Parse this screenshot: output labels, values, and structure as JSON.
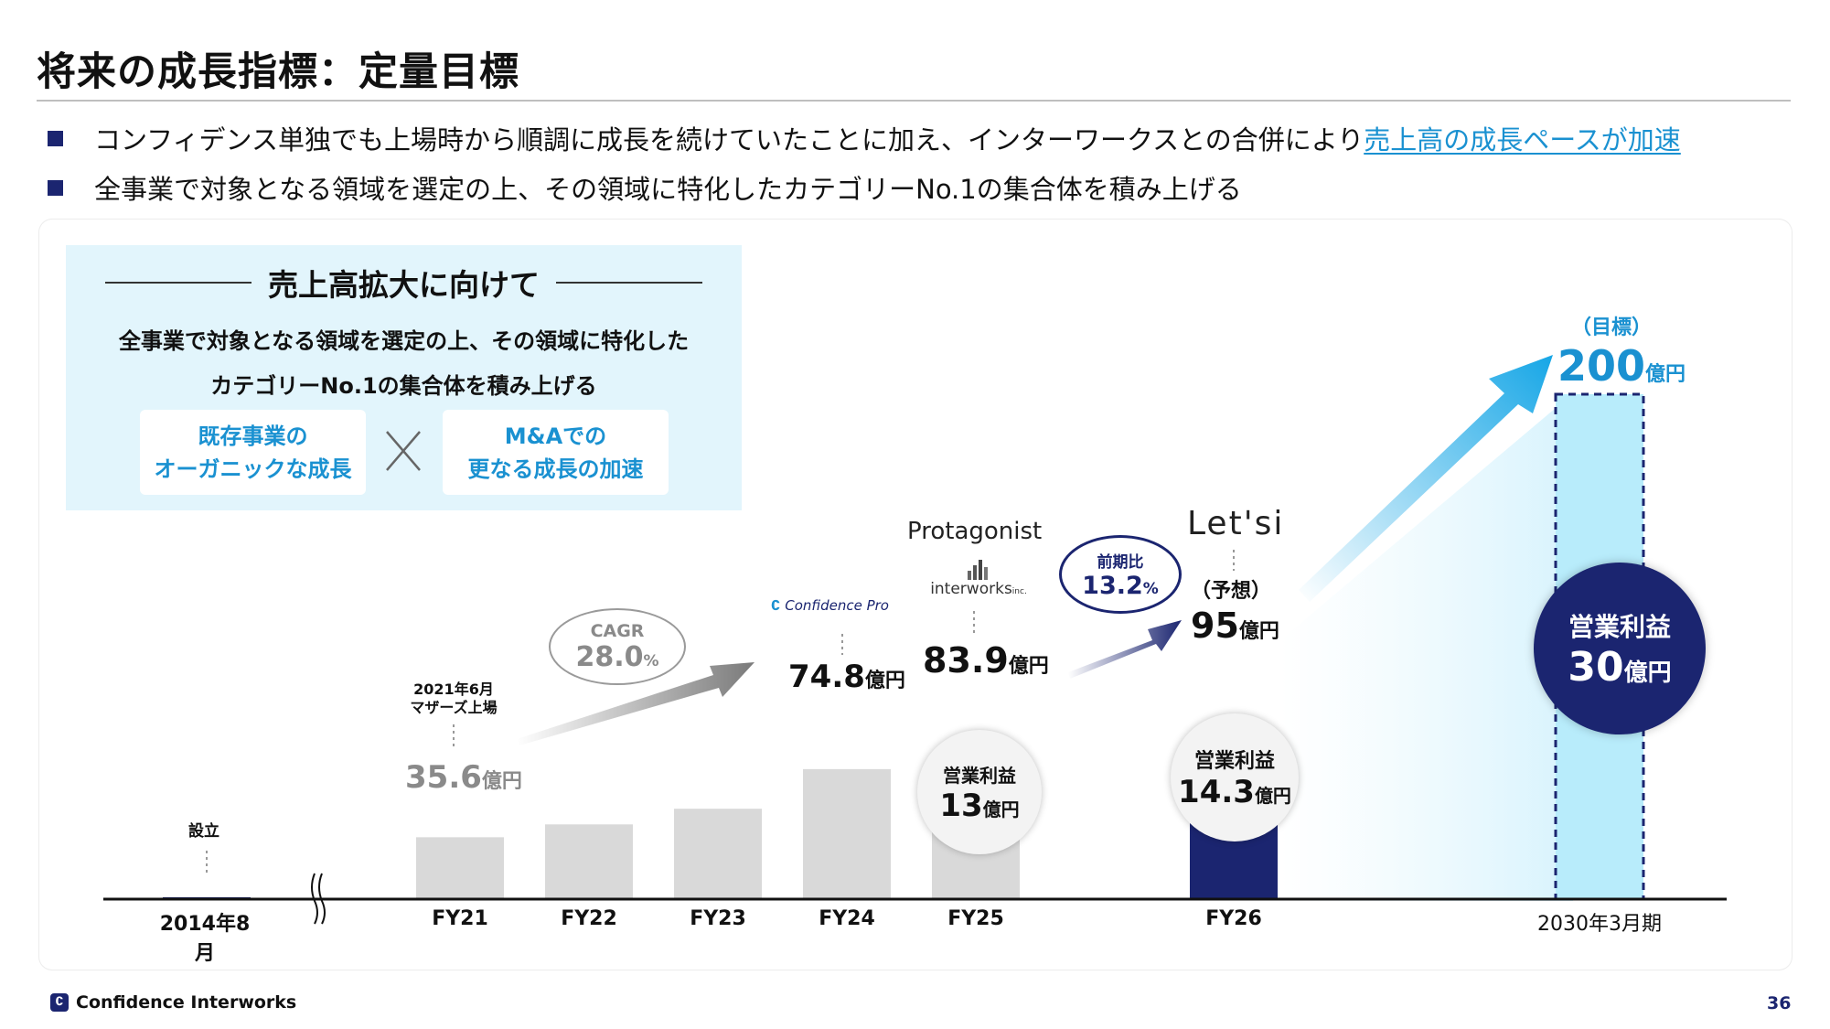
{
  "header": {
    "title": "将来の成長指標：定量目標",
    "bullets": [
      {
        "text": "コンフィデンス単独でも上場時から順調に成長を続けていたことに加え、インターワークスとの合併により",
        "highlight": "売上高の成長ペースが加速"
      },
      {
        "text": "全事業で対象となる領域を選定の上、その領域に特化したカテゴリーNo.1の集合体を積み上げる",
        "highlight": ""
      }
    ]
  },
  "info_box": {
    "heading": "売上高拡大に向けて",
    "sub_line1": "全事業で対象となる領域を選定の上、その領域に特化した",
    "sub_line2": "カテゴリーNo.1の集合体を積み上げる",
    "pill_left_1": "既存事業の",
    "pill_left_2": "オーガニックな成長",
    "pill_right_1": "M&Aでの",
    "pill_right_2": "更なる成長の加速"
  },
  "chart_data": {
    "type": "bar",
    "unit": "億円",
    "categories": [
      "2014年8月",
      "FY21",
      "FY22",
      "FY23",
      "FY24",
      "FY25",
      "FY26",
      "2030年3月期"
    ],
    "values": [
      0.5,
      35.6,
      43,
      52,
      74.8,
      83.9,
      95,
      200
    ],
    "bar_labels": {
      "2014年8月": "設立",
      "FY21": "35.6",
      "FY24": "74.8",
      "FY25": "83.9",
      "FY26": "95",
      "2030年3月期": "200"
    },
    "operating_profit": {
      "FY25": {
        "label": "営業利益",
        "value": "13"
      },
      "FY26": {
        "label": "営業利益",
        "value": "14.3"
      },
      "2030年3月期": {
        "label": "営業利益",
        "value": "30"
      }
    },
    "annotations": {
      "listing": "2021年6月\nマザーズ上場",
      "listing_line1": "2021年6月",
      "listing_line2": "マザーズ上場",
      "cagr_label": "CAGR",
      "cagr_value": "28.0",
      "cagr_unit": "%",
      "yoy_label": "前期比",
      "yoy_value": "13.2",
      "yoy_unit": "%",
      "forecast": "（予想）",
      "target": "（目標）"
    },
    "logos": {
      "confidence_pro": "Confidence Pro",
      "protagonist": "Protagonist",
      "interworks": "interworks",
      "interworks_suffix": "inc.",
      "letsi": "Let'si"
    },
    "colors": {
      "past": "#d9d9d9",
      "fy26": "#1b2570",
      "target": "#b8ecfb",
      "accent": "#1a91d1",
      "navy": "#1b2570"
    }
  },
  "footer": {
    "company": "Confidence Interworks",
    "page": "36"
  }
}
